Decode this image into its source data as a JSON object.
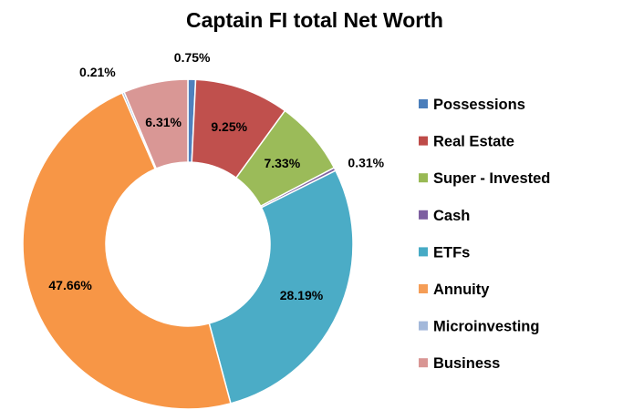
{
  "chart_data": {
    "type": "pie",
    "title": "Captain FI total Net Worth",
    "donut": true,
    "legend_position": "right",
    "categories": [
      "Possessions",
      "Real Estate",
      "Super - Invested",
      "Cash",
      "ETFs",
      "Annuity",
      "Microinvesting",
      "Business"
    ],
    "values": [
      0.75,
      9.25,
      7.33,
      0.31,
      28.19,
      47.66,
      0.21,
      6.31
    ],
    "labels": [
      "0.75%",
      "9.25%",
      "7.33%",
      "0.31%",
      "28.19%",
      "47.66%",
      "0.21%",
      "6.31%"
    ],
    "colors": [
      "#4A7EBB",
      "#BE4B48",
      "#98B954",
      "#7D5FA0",
      "#46AAC5",
      "#F59D56",
      "#A3B8DA",
      "#D99694"
    ],
    "slice_colors": [
      "#4F81BD",
      "#C0504D",
      "#9BBB59",
      "#8064A2",
      "#4BACC6",
      "#F79646",
      "#95B3D7",
      "#D99795"
    ]
  }
}
